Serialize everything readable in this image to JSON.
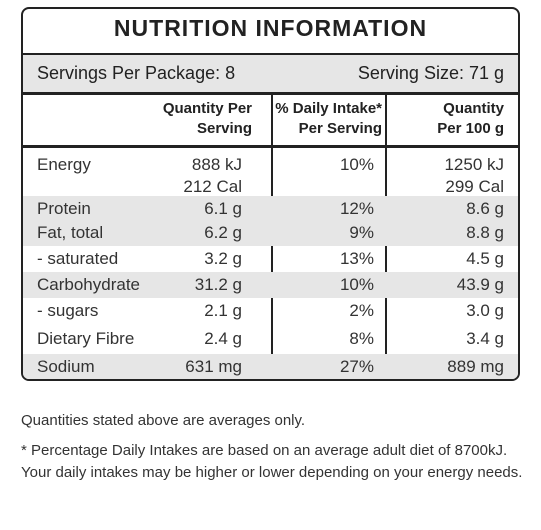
{
  "title": "NUTRITION  INFORMATION",
  "servings": {
    "per_package": "Servings Per Package: 8",
    "serving_size": "Serving Size: 71 g"
  },
  "headers": {
    "qty_line1": "Quantity Per",
    "qty_line2": "Serving",
    "dv_line1": "% Daily Intake*",
    "dv_line2": "Per Serving",
    "p100_line1": "Quantity",
    "p100_line2": "Per 100 g"
  },
  "rows": [
    {
      "name": "Energy",
      "qty1": "888 kJ",
      "qty2": "212 Cal",
      "dv": "10%",
      "p100_1": "1250 kJ",
      "p100_2": "299 Cal"
    },
    {
      "name": "Protein",
      "qty": "6.1 g",
      "dv": "12%",
      "p100": "8.6 g"
    },
    {
      "name": "Fat, total",
      "qty": "6.2 g",
      "dv": "9%",
      "p100": "8.8 g"
    },
    {
      "name": "- saturated",
      "qty": "3.2 g",
      "dv": "13%",
      "p100": "4.5 g"
    },
    {
      "name": "Carbohydrate",
      "qty": "31.2 g",
      "dv": "10%",
      "p100": "43.9 g"
    },
    {
      "name": "- sugars",
      "qty": "2.1 g",
      "dv": "2%",
      "p100": "3.0 g"
    },
    {
      "name": "Dietary Fibre",
      "qty": "2.4 g",
      "dv": "8%",
      "p100": "3.4 g"
    },
    {
      "name": "Sodium",
      "qty": "631 mg",
      "dv": "27%",
      "p100": "889 mg"
    }
  ],
  "notes": {
    "averages": "Quantities stated above are averages only.",
    "daily_intake": "* Percentage Daily Intakes are based on an average adult diet of 8700kJ. Your daily intakes may be higher or lower depending on your energy needs."
  },
  "colors": {
    "border": "#222222",
    "shade": "#e6e6e6"
  }
}
